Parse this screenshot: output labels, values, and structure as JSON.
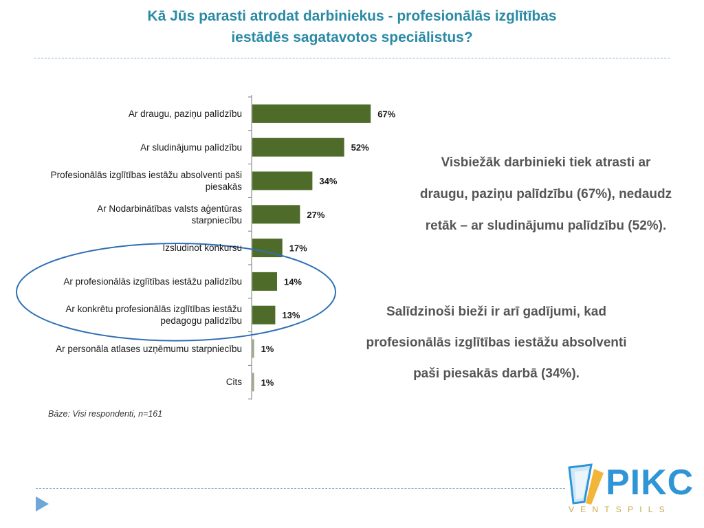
{
  "slide": {
    "title_line1": "Kā Jūs parasti atrodat darbiniekus - profesionālās izglītības",
    "title_line2": "iestādēs sagatavotos speciālistus?",
    "base_note": "Bāze: Visi respondenti, n=161",
    "summary_1": "Visbiežāk darbinieki tiek atrasti ar draugu, paziņu palīdzību (67%), nedaudz retāk – ar sludinājumu palīdzību (52%).",
    "summary_2": "Salīdzinoši bieži ir arī gadījumi, kad profesionālās izglītības iestāžu absolventi paši piesakās darbā (34%).",
    "logo_text": "PIKC",
    "logo_subtext": "VENTSPILS",
    "nav_icon": "play-triangle-icon"
  },
  "colors": {
    "title": "#2a8aa5",
    "bar": "#4e6b2a",
    "highlight_ellipse": "#2f6fb5",
    "summary_text": "#555555",
    "logo_blue": "#2f95d6",
    "logo_gold": "#c9a44a"
  },
  "chart_data": {
    "type": "bar",
    "orientation": "horizontal",
    "categories": [
      "Ar draugu, paziņu palīdzību",
      "Ar sludinājumu palīdzību",
      "Profesionālās izglītības iestāžu absolventi paši piesakās",
      "Ar Nodarbinātības valsts aģentūras starpniecību",
      "Izsludinot konkursu",
      "Ar profesionālās izglītības iestāžu palīdzību",
      "Ar konkrētu profesionālās izglītības iestāžu pedagogu palīdzību",
      "Ar personāla atlases uzņēmumu starpniecību",
      "Cits"
    ],
    "label_lines": [
      [
        "Ar draugu, paziņu palīdzību"
      ],
      [
        "Ar sludinājumu palīdzību"
      ],
      [
        "Profesionālās izglītības iestāžu absolventi paši",
        "piesakās"
      ],
      [
        "Ar Nodarbinātības valsts aģentūras",
        "starpniecību"
      ],
      [
        "Izsludinot konkursu"
      ],
      [
        "Ar profesionālās izglītības iestāžu palīdzību"
      ],
      [
        "Ar konkrētu profesionālās izglītības iestāžu",
        "pedagogu palīdzību"
      ],
      [
        "Ar personāla atlases uzņēmumu starpniecību"
      ],
      [
        "Cits"
      ]
    ],
    "values": [
      67,
      52,
      34,
      27,
      17,
      14,
      13,
      1,
      1
    ],
    "value_labels": [
      "67%",
      "52%",
      "34%",
      "27%",
      "17%",
      "14%",
      "13%",
      "1%",
      "1%"
    ],
    "highlighted_categories": [
      5,
      6
    ],
    "xlim": [
      0,
      100
    ],
    "grid": false,
    "legend": "none"
  }
}
